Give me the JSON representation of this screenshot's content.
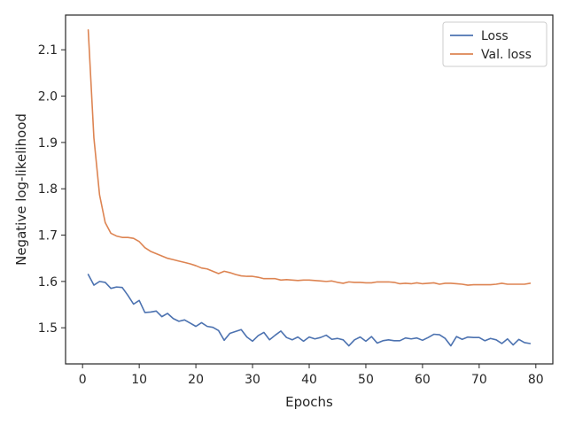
{
  "chart_data": {
    "type": "line",
    "xlabel": "Epochs",
    "ylabel": "Negative log-likelihood",
    "xlim": [
      -3,
      83
    ],
    "ylim": [
      1.422,
      2.175
    ],
    "x_ticks": [
      0,
      10,
      20,
      30,
      40,
      50,
      60,
      70,
      80
    ],
    "y_ticks": [
      1.5,
      1.6,
      1.7,
      1.8,
      1.9,
      2.0,
      2.1
    ],
    "y_tick_labels": [
      "1.5",
      "1.6",
      "1.7",
      "1.8",
      "1.9",
      "2.0",
      "2.1"
    ],
    "grid": false,
    "legend_position": "top-right",
    "x": [
      1,
      2,
      3,
      4,
      5,
      6,
      7,
      8,
      9,
      10,
      11,
      12,
      13,
      14,
      15,
      16,
      17,
      18,
      19,
      20,
      21,
      22,
      23,
      24,
      25,
      26,
      27,
      28,
      29,
      30,
      31,
      32,
      33,
      34,
      35,
      36,
      37,
      38,
      39,
      40,
      41,
      42,
      43,
      44,
      45,
      46,
      47,
      48,
      49,
      50,
      51,
      52,
      53,
      54,
      55,
      56,
      57,
      58,
      59,
      60,
      61,
      62,
      63,
      64,
      65,
      66,
      67,
      68,
      69,
      70,
      71,
      72,
      73,
      74,
      75,
      76,
      77,
      78,
      79
    ],
    "series": [
      {
        "name": "Loss",
        "color": "#4c72b0",
        "values": [
          1.615,
          1.592,
          1.6,
          1.598,
          1.585,
          1.588,
          1.587,
          1.57,
          1.551,
          1.559,
          1.533,
          1.534,
          1.536,
          1.524,
          1.531,
          1.52,
          1.514,
          1.517,
          1.51,
          1.503,
          1.511,
          1.503,
          1.501,
          1.494,
          1.473,
          1.488,
          1.492,
          1.496,
          1.48,
          1.471,
          1.483,
          1.49,
          1.474,
          1.484,
          1.493,
          1.479,
          1.474,
          1.48,
          1.471,
          1.48,
          1.476,
          1.479,
          1.484,
          1.475,
          1.477,
          1.474,
          1.461,
          1.474,
          1.48,
          1.471,
          1.481,
          1.467,
          1.472,
          1.474,
          1.472,
          1.472,
          1.478,
          1.476,
          1.478,
          1.473,
          1.479,
          1.486,
          1.485,
          1.477,
          1.461,
          1.481,
          1.475,
          1.48,
          1.479,
          1.479,
          1.472,
          1.477,
          1.474,
          1.466,
          1.476,
          1.463,
          1.475,
          1.468,
          1.466
        ]
      },
      {
        "name": "Val. loss",
        "color": "#dd8452",
        "values": [
          2.143,
          1.91,
          1.787,
          1.727,
          1.704,
          1.698,
          1.695,
          1.695,
          1.693,
          1.686,
          1.673,
          1.665,
          1.66,
          1.655,
          1.65,
          1.647,
          1.644,
          1.641,
          1.638,
          1.634,
          1.629,
          1.627,
          1.622,
          1.617,
          1.622,
          1.619,
          1.615,
          1.612,
          1.611,
          1.611,
          1.609,
          1.606,
          1.606,
          1.606,
          1.603,
          1.604,
          1.603,
          1.602,
          1.603,
          1.603,
          1.602,
          1.601,
          1.6,
          1.601,
          1.598,
          1.596,
          1.599,
          1.598,
          1.598,
          1.597,
          1.597,
          1.599,
          1.599,
          1.599,
          1.598,
          1.595,
          1.596,
          1.595,
          1.597,
          1.595,
          1.596,
          1.597,
          1.594,
          1.596,
          1.596,
          1.595,
          1.594,
          1.592,
          1.593,
          1.593,
          1.593,
          1.593,
          1.594,
          1.596,
          1.594,
          1.594,
          1.594,
          1.594,
          1.596
        ]
      }
    ]
  }
}
